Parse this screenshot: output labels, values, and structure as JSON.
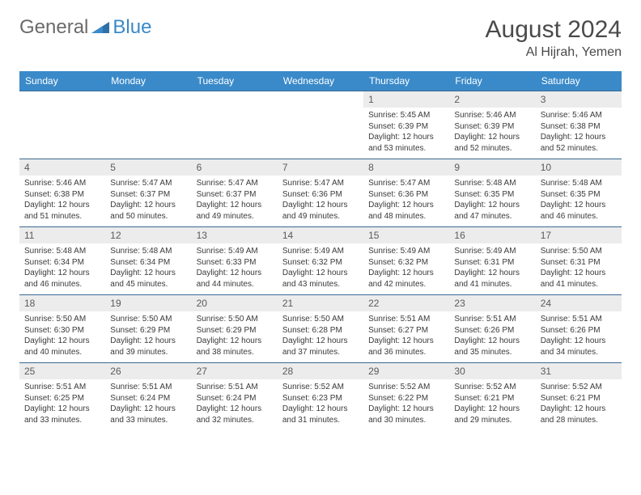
{
  "brand": {
    "general": "General",
    "blue": "Blue"
  },
  "title": "August 2024",
  "location": "Al Hijrah, Yemen",
  "colors": {
    "header_bg": "#3a8ac9",
    "header_text": "#ffffff",
    "daynum_bg": "#ececec",
    "row_border": "#3a6a94",
    "text": "#3a3a3a",
    "brand_gray": "#6b6b6b",
    "brand_blue": "#3a8ac9"
  },
  "weekdays": [
    "Sunday",
    "Monday",
    "Tuesday",
    "Wednesday",
    "Thursday",
    "Friday",
    "Saturday"
  ],
  "first_weekday_index": 4,
  "days": [
    {
      "n": 1,
      "sunrise": "5:45 AM",
      "sunset": "6:39 PM",
      "daylight": "12 hours and 53 minutes."
    },
    {
      "n": 2,
      "sunrise": "5:46 AM",
      "sunset": "6:39 PM",
      "daylight": "12 hours and 52 minutes."
    },
    {
      "n": 3,
      "sunrise": "5:46 AM",
      "sunset": "6:38 PM",
      "daylight": "12 hours and 52 minutes."
    },
    {
      "n": 4,
      "sunrise": "5:46 AM",
      "sunset": "6:38 PM",
      "daylight": "12 hours and 51 minutes."
    },
    {
      "n": 5,
      "sunrise": "5:47 AM",
      "sunset": "6:37 PM",
      "daylight": "12 hours and 50 minutes."
    },
    {
      "n": 6,
      "sunrise": "5:47 AM",
      "sunset": "6:37 PM",
      "daylight": "12 hours and 49 minutes."
    },
    {
      "n": 7,
      "sunrise": "5:47 AM",
      "sunset": "6:36 PM",
      "daylight": "12 hours and 49 minutes."
    },
    {
      "n": 8,
      "sunrise": "5:47 AM",
      "sunset": "6:36 PM",
      "daylight": "12 hours and 48 minutes."
    },
    {
      "n": 9,
      "sunrise": "5:48 AM",
      "sunset": "6:35 PM",
      "daylight": "12 hours and 47 minutes."
    },
    {
      "n": 10,
      "sunrise": "5:48 AM",
      "sunset": "6:35 PM",
      "daylight": "12 hours and 46 minutes."
    },
    {
      "n": 11,
      "sunrise": "5:48 AM",
      "sunset": "6:34 PM",
      "daylight": "12 hours and 46 minutes."
    },
    {
      "n": 12,
      "sunrise": "5:48 AM",
      "sunset": "6:34 PM",
      "daylight": "12 hours and 45 minutes."
    },
    {
      "n": 13,
      "sunrise": "5:49 AM",
      "sunset": "6:33 PM",
      "daylight": "12 hours and 44 minutes."
    },
    {
      "n": 14,
      "sunrise": "5:49 AM",
      "sunset": "6:32 PM",
      "daylight": "12 hours and 43 minutes."
    },
    {
      "n": 15,
      "sunrise": "5:49 AM",
      "sunset": "6:32 PM",
      "daylight": "12 hours and 42 minutes."
    },
    {
      "n": 16,
      "sunrise": "5:49 AM",
      "sunset": "6:31 PM",
      "daylight": "12 hours and 41 minutes."
    },
    {
      "n": 17,
      "sunrise": "5:50 AM",
      "sunset": "6:31 PM",
      "daylight": "12 hours and 41 minutes."
    },
    {
      "n": 18,
      "sunrise": "5:50 AM",
      "sunset": "6:30 PM",
      "daylight": "12 hours and 40 minutes."
    },
    {
      "n": 19,
      "sunrise": "5:50 AM",
      "sunset": "6:29 PM",
      "daylight": "12 hours and 39 minutes."
    },
    {
      "n": 20,
      "sunrise": "5:50 AM",
      "sunset": "6:29 PM",
      "daylight": "12 hours and 38 minutes."
    },
    {
      "n": 21,
      "sunrise": "5:50 AM",
      "sunset": "6:28 PM",
      "daylight": "12 hours and 37 minutes."
    },
    {
      "n": 22,
      "sunrise": "5:51 AM",
      "sunset": "6:27 PM",
      "daylight": "12 hours and 36 minutes."
    },
    {
      "n": 23,
      "sunrise": "5:51 AM",
      "sunset": "6:26 PM",
      "daylight": "12 hours and 35 minutes."
    },
    {
      "n": 24,
      "sunrise": "5:51 AM",
      "sunset": "6:26 PM",
      "daylight": "12 hours and 34 minutes."
    },
    {
      "n": 25,
      "sunrise": "5:51 AM",
      "sunset": "6:25 PM",
      "daylight": "12 hours and 33 minutes."
    },
    {
      "n": 26,
      "sunrise": "5:51 AM",
      "sunset": "6:24 PM",
      "daylight": "12 hours and 33 minutes."
    },
    {
      "n": 27,
      "sunrise": "5:51 AM",
      "sunset": "6:24 PM",
      "daylight": "12 hours and 32 minutes."
    },
    {
      "n": 28,
      "sunrise": "5:52 AM",
      "sunset": "6:23 PM",
      "daylight": "12 hours and 31 minutes."
    },
    {
      "n": 29,
      "sunrise": "5:52 AM",
      "sunset": "6:22 PM",
      "daylight": "12 hours and 30 minutes."
    },
    {
      "n": 30,
      "sunrise": "5:52 AM",
      "sunset": "6:21 PM",
      "daylight": "12 hours and 29 minutes."
    },
    {
      "n": 31,
      "sunrise": "5:52 AM",
      "sunset": "6:21 PM",
      "daylight": "12 hours and 28 minutes."
    }
  ],
  "labels": {
    "sunrise": "Sunrise:",
    "sunset": "Sunset:",
    "daylight": "Daylight:"
  }
}
